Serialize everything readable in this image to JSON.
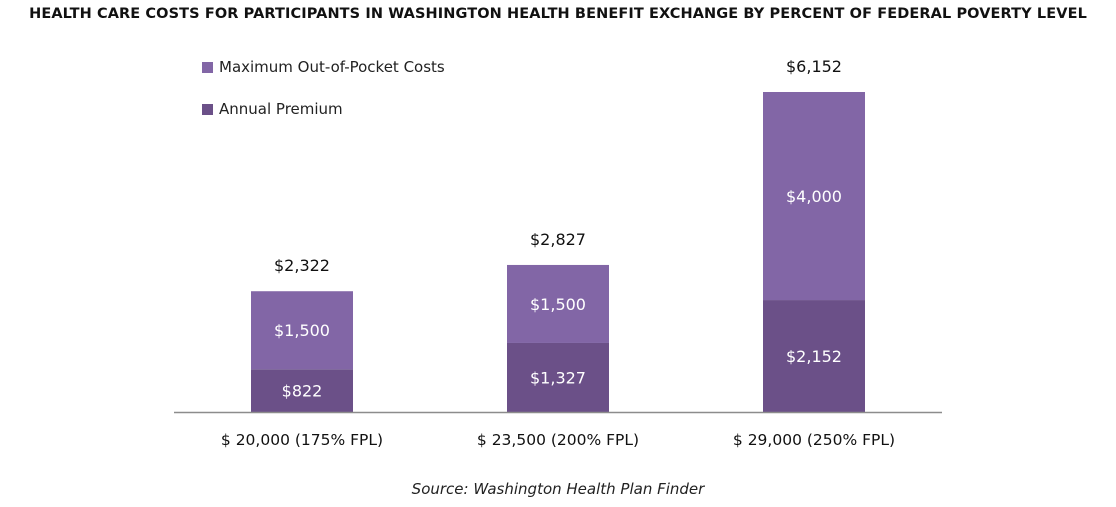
{
  "chart_data": {
    "type": "bar",
    "stacked": true,
    "title": "HEALTH CARE COSTS FOR PARTICIPANTS IN WASHINGTON HEALTH BENEFIT EXCHANGE BY PERCENT OF FEDERAL POVERTY LEVEL",
    "categories": [
      "$ 20,000 (175% FPL)",
      "$ 23,500 (200% FPL)",
      "$ 29,000 (250% FPL)"
    ],
    "series": [
      {
        "name": "Annual Premium",
        "values": [
          822,
          1327,
          2152
        ],
        "labels": [
          "$822",
          "$1,327",
          "$2,152"
        ],
        "color": "#6b5088"
      },
      {
        "name": "Maximum Out-of-Pocket Costs",
        "values": [
          1500,
          1500,
          4000
        ],
        "labels": [
          "$1,500",
          "$1,500",
          "$4,000"
        ],
        "color": "#8266a6"
      }
    ],
    "totals": [
      2322,
      2827,
      6152
    ],
    "total_labels": [
      "$2,322",
      "$2,827",
      "$6,152"
    ],
    "legend": [
      "Maximum Out-of-Pocket Costs",
      "Annual Premium"
    ],
    "legend_position": "top-left",
    "xlabel": "",
    "ylabel": "",
    "ylim": [
      0,
      6152
    ],
    "grid": false
  },
  "source": "Source: Washington Health Plan Finder"
}
